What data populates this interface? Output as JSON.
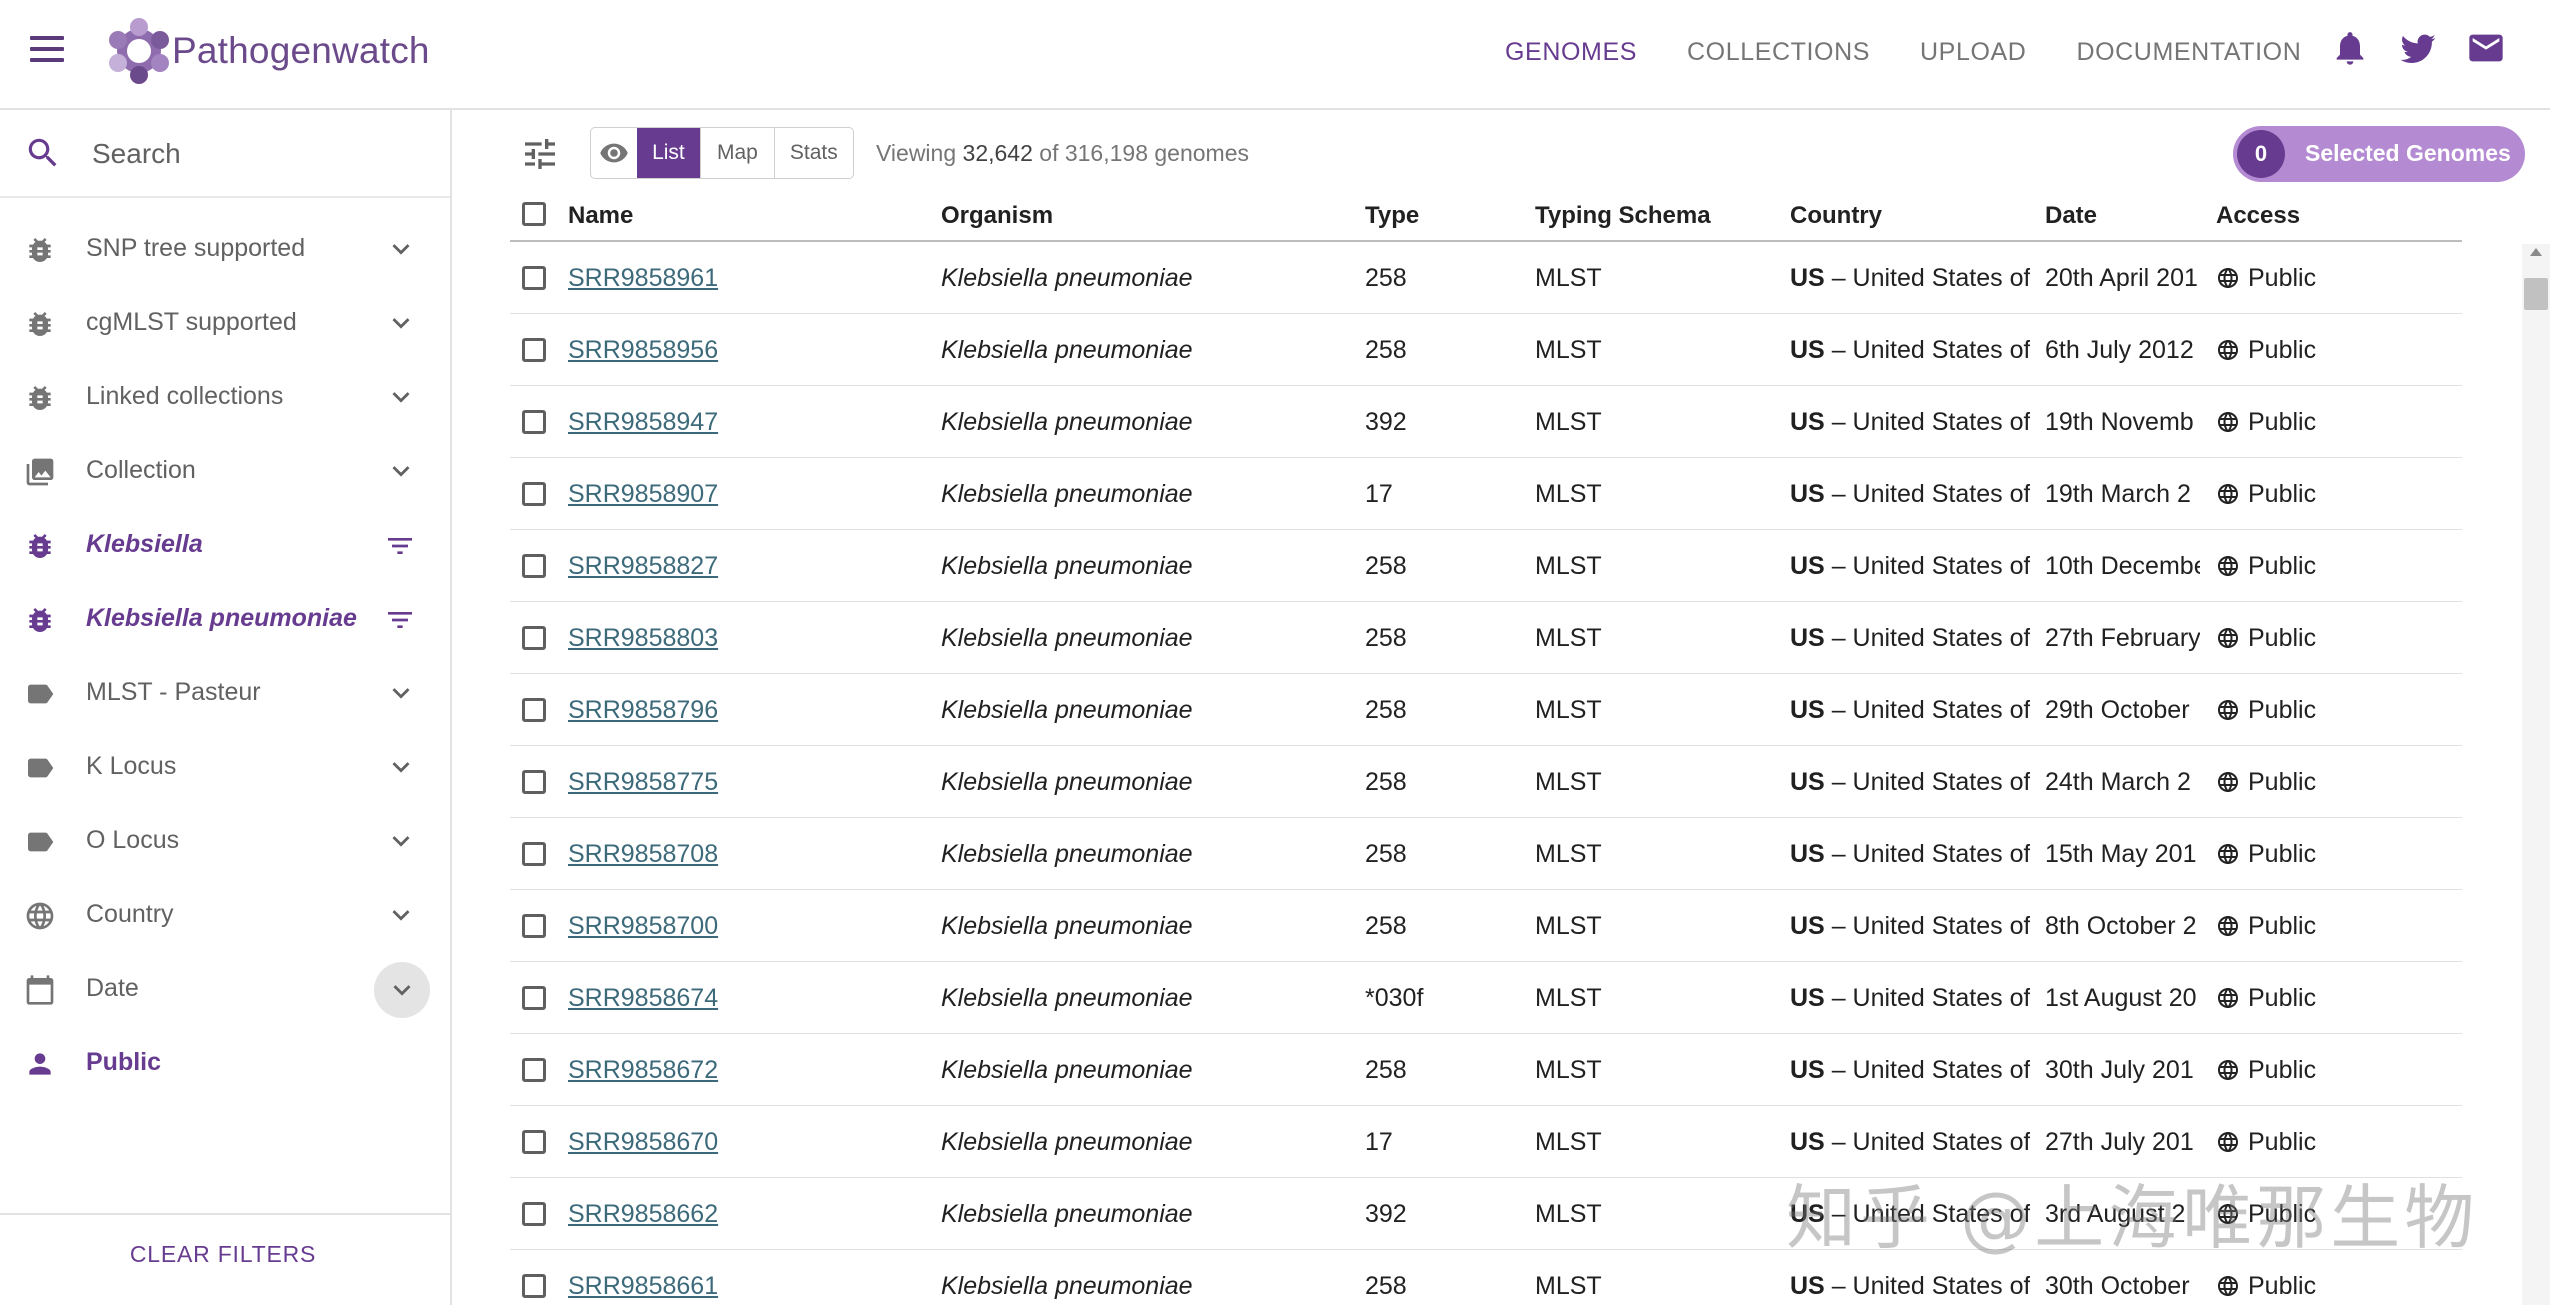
{
  "header": {
    "brand": "Pathogenwatch",
    "nav": [
      "GENOMES",
      "COLLECTIONS",
      "UPLOAD",
      "DOCUMENTATION"
    ],
    "active_nav": "GENOMES",
    "icons": [
      "notification-bell-icon",
      "twitter-icon",
      "mail-icon"
    ]
  },
  "sidebar": {
    "search_placeholder": "Search",
    "filters": [
      {
        "label": "SNP tree supported",
        "icon": "bug-icon",
        "control": "chevron-down"
      },
      {
        "label": "cgMLST supported",
        "icon": "bug-icon",
        "control": "chevron-down"
      },
      {
        "label": "Linked collections",
        "icon": "bug-icon",
        "control": "chevron-down"
      },
      {
        "label": "Collection",
        "icon": "image-icon",
        "control": "chevron-down"
      },
      {
        "label": "Klebsiella",
        "icon": "bug-icon",
        "control": "filter",
        "active": true
      },
      {
        "label": "Klebsiella pneumoniae",
        "icon": "bug-icon",
        "control": "filter",
        "active": true
      },
      {
        "label": "MLST - Pasteur",
        "icon": "label-icon",
        "control": "chevron-down"
      },
      {
        "label": "K Locus",
        "icon": "label-icon",
        "control": "chevron-down"
      },
      {
        "label": "O Locus",
        "icon": "label-icon",
        "control": "chevron-down"
      },
      {
        "label": "Country",
        "icon": "globe-icon",
        "control": "chevron-down"
      },
      {
        "label": "Date",
        "icon": "calendar-icon",
        "control": "chevron-down",
        "hovered": true
      },
      {
        "label": "Public",
        "icon": "person-icon",
        "control": "none",
        "active": true
      }
    ],
    "clear_filters": "CLEAR FILTERS"
  },
  "toolbar": {
    "views": [
      "List",
      "Map",
      "Stats"
    ],
    "active_view": "List",
    "viewing_prefix": "Viewing",
    "viewing_count": "32,642",
    "viewing_suffix": "of 316,198 genomes",
    "selected_count": "0",
    "selected_label": "Selected Genomes"
  },
  "table": {
    "columns": [
      "Name",
      "Organism",
      "Type",
      "Typing Schema",
      "Country",
      "Date",
      "Access"
    ],
    "rows": [
      {
        "name": "SRR9858961",
        "organism": "Klebsiella pneumoniae",
        "type": "258",
        "schema": "MLST",
        "country_code": "US",
        "country_name": "– United States of",
        "date": "20th April 201",
        "access": "Public"
      },
      {
        "name": "SRR9858956",
        "organism": "Klebsiella pneumoniae",
        "type": "258",
        "schema": "MLST",
        "country_code": "US",
        "country_name": "– United States of",
        "date": "6th July 2012",
        "access": "Public"
      },
      {
        "name": "SRR9858947",
        "organism": "Klebsiella pneumoniae",
        "type": "392",
        "schema": "MLST",
        "country_code": "US",
        "country_name": "– United States of",
        "date": "19th Novemb",
        "access": "Public"
      },
      {
        "name": "SRR9858907",
        "organism": "Klebsiella pneumoniae",
        "type": "17",
        "schema": "MLST",
        "country_code": "US",
        "country_name": "– United States of",
        "date": "19th March 2",
        "access": "Public"
      },
      {
        "name": "SRR9858827",
        "organism": "Klebsiella pneumoniae",
        "type": "258",
        "schema": "MLST",
        "country_code": "US",
        "country_name": "– United States of",
        "date": "10th Decembe",
        "access": "Public"
      },
      {
        "name": "SRR9858803",
        "organism": "Klebsiella pneumoniae",
        "type": "258",
        "schema": "MLST",
        "country_code": "US",
        "country_name": "– United States of",
        "date": "27th February",
        "access": "Public"
      },
      {
        "name": "SRR9858796",
        "organism": "Klebsiella pneumoniae",
        "type": "258",
        "schema": "MLST",
        "country_code": "US",
        "country_name": "– United States of",
        "date": "29th October",
        "access": "Public"
      },
      {
        "name": "SRR9858775",
        "organism": "Klebsiella pneumoniae",
        "type": "258",
        "schema": "MLST",
        "country_code": "US",
        "country_name": "– United States of",
        "date": "24th March 2",
        "access": "Public"
      },
      {
        "name": "SRR9858708",
        "organism": "Klebsiella pneumoniae",
        "type": "258",
        "schema": "MLST",
        "country_code": "US",
        "country_name": "– United States of",
        "date": "15th May 201",
        "access": "Public"
      },
      {
        "name": "SRR9858700",
        "organism": "Klebsiella pneumoniae",
        "type": "258",
        "schema": "MLST",
        "country_code": "US",
        "country_name": "– United States of",
        "date": "8th October 2",
        "access": "Public"
      },
      {
        "name": "SRR9858674",
        "organism": "Klebsiella pneumoniae",
        "type": "*030f",
        "schema": "MLST",
        "country_code": "US",
        "country_name": "– United States of",
        "date": "1st August 20",
        "access": "Public"
      },
      {
        "name": "SRR9858672",
        "organism": "Klebsiella pneumoniae",
        "type": "258",
        "schema": "MLST",
        "country_code": "US",
        "country_name": "– United States of",
        "date": "30th July 201",
        "access": "Public"
      },
      {
        "name": "SRR9858670",
        "organism": "Klebsiella pneumoniae",
        "type": "17",
        "schema": "MLST",
        "country_code": "US",
        "country_name": "– United States of",
        "date": "27th July 201",
        "access": "Public"
      },
      {
        "name": "SRR9858662",
        "organism": "Klebsiella pneumoniae",
        "type": "392",
        "schema": "MLST",
        "country_code": "US",
        "country_name": "– United States of",
        "date": "3rd August 2",
        "access": "Public"
      },
      {
        "name": "SRR9858661",
        "organism": "Klebsiella pneumoniae",
        "type": "258",
        "schema": "MLST",
        "country_code": "US",
        "country_name": "– United States of",
        "date": "30th October",
        "access": "Public"
      }
    ]
  },
  "watermark": "知乎 @上海唯那生物",
  "colors": {
    "accent": "#673c90",
    "accent_light": "#b48bd2",
    "link": "#3d6a7a",
    "muted": "#616161"
  }
}
